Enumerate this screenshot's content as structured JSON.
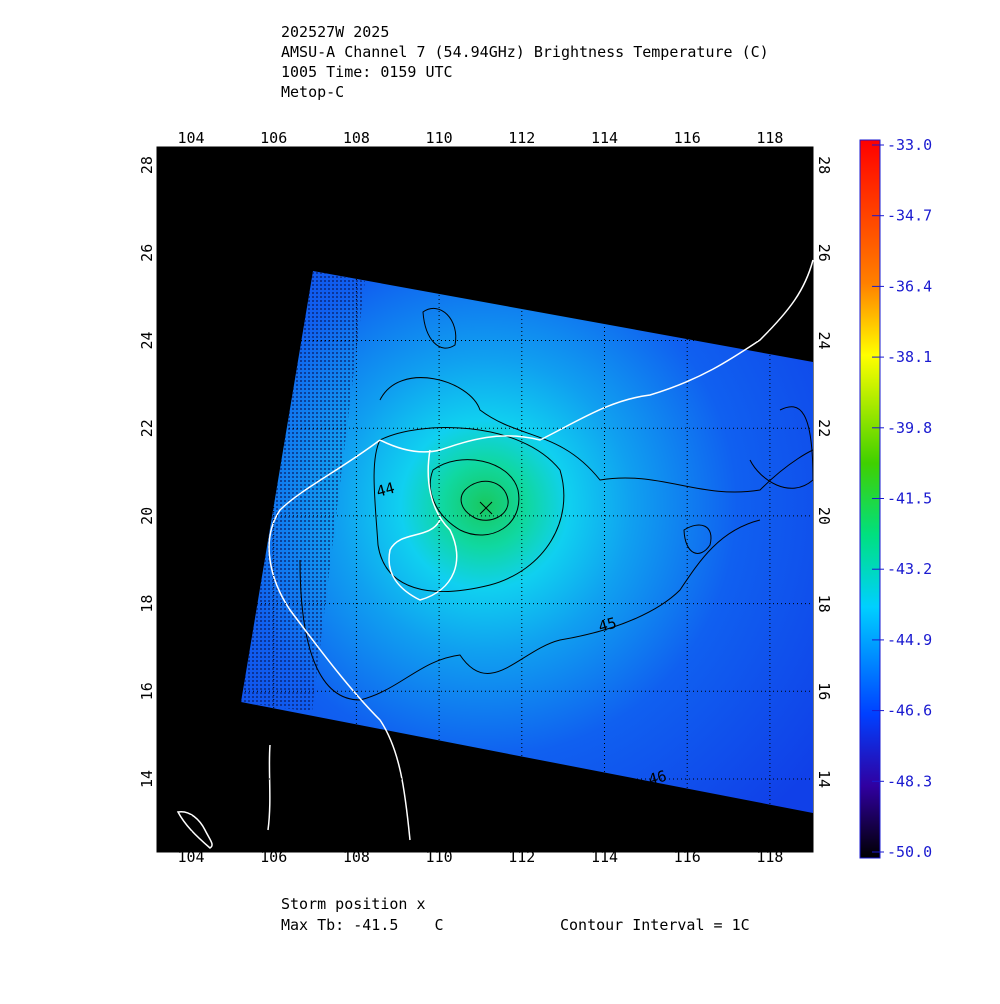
{
  "header": {
    "lines": [
      "202527W 2025",
      "AMSU-A Channel 7 (54.94GHz) Brightness Temperature (C)",
      "1005 Time: 0159 UTC",
      "Metop-C"
    ]
  },
  "axes": {
    "longitude_labels": [
      "104",
      "106",
      "108",
      "110",
      "112",
      "114",
      "116",
      "118"
    ],
    "latitude_labels": [
      "14",
      "16",
      "18",
      "20",
      "22",
      "24",
      "26",
      "28"
    ]
  },
  "colorbar": {
    "labels": [
      "-33.0",
      "-34.7",
      "-36.4",
      "-38.1",
      "-39.8",
      "-41.5",
      "-43.2",
      "-44.9",
      "-46.6",
      "-48.3",
      "-50.0"
    ]
  },
  "contour_labels": [
    "44",
    "45",
    "46"
  ],
  "footer": {
    "storm_position": "Storm position x",
    "max_tb": "Max Tb: -41.5    C",
    "contour_interval": "Contour Interval = 1C"
  }
}
